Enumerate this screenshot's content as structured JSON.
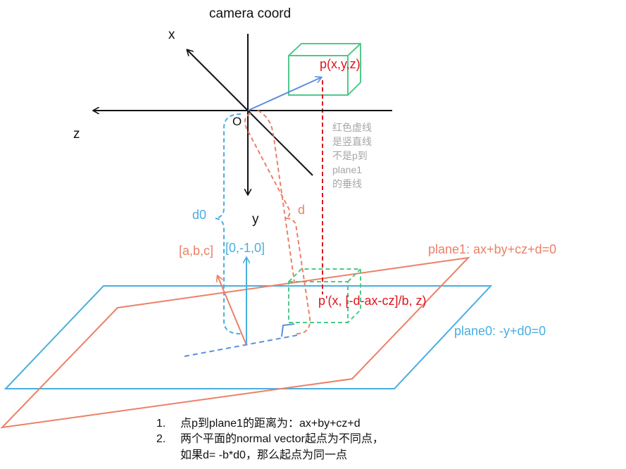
{
  "title": "camera coord",
  "axes": {
    "x": "x",
    "y": "y",
    "z": "z",
    "origin": "O"
  },
  "point_p": "p(x,y,z)",
  "point_p_prime": "p'(x, [-d-ax-cz]/b, z)",
  "normal_plane1": "[a,b,c]",
  "normal_plane0": "[0,-1,0]",
  "dist_d0": "d0",
  "dist_d": "d",
  "plane1_label": "plane1:   ax+by+cz+d=0",
  "plane0_label": "plane0:   -y+d0=0",
  "gray_note": [
    "红色虚线",
    "是竖直线",
    "不是p到",
    "plane1",
    "的垂线"
  ],
  "notes": [
    {
      "num": "1.",
      "text": "点p到plane1的距离为：ax+by+cz+d"
    },
    {
      "num": "2.",
      "text": "两个平面的normal vector起点为不同点，",
      "cont": "如果d= -b*d0，那么起点为同一点"
    }
  ],
  "colors": {
    "plane0": "#4aaee0",
    "plane1": "#ec8068",
    "point": "#e0141e",
    "box": "#4fc98a",
    "vector": "#5b8fd9",
    "axis": "#111111",
    "note": "#a6a6a6"
  }
}
